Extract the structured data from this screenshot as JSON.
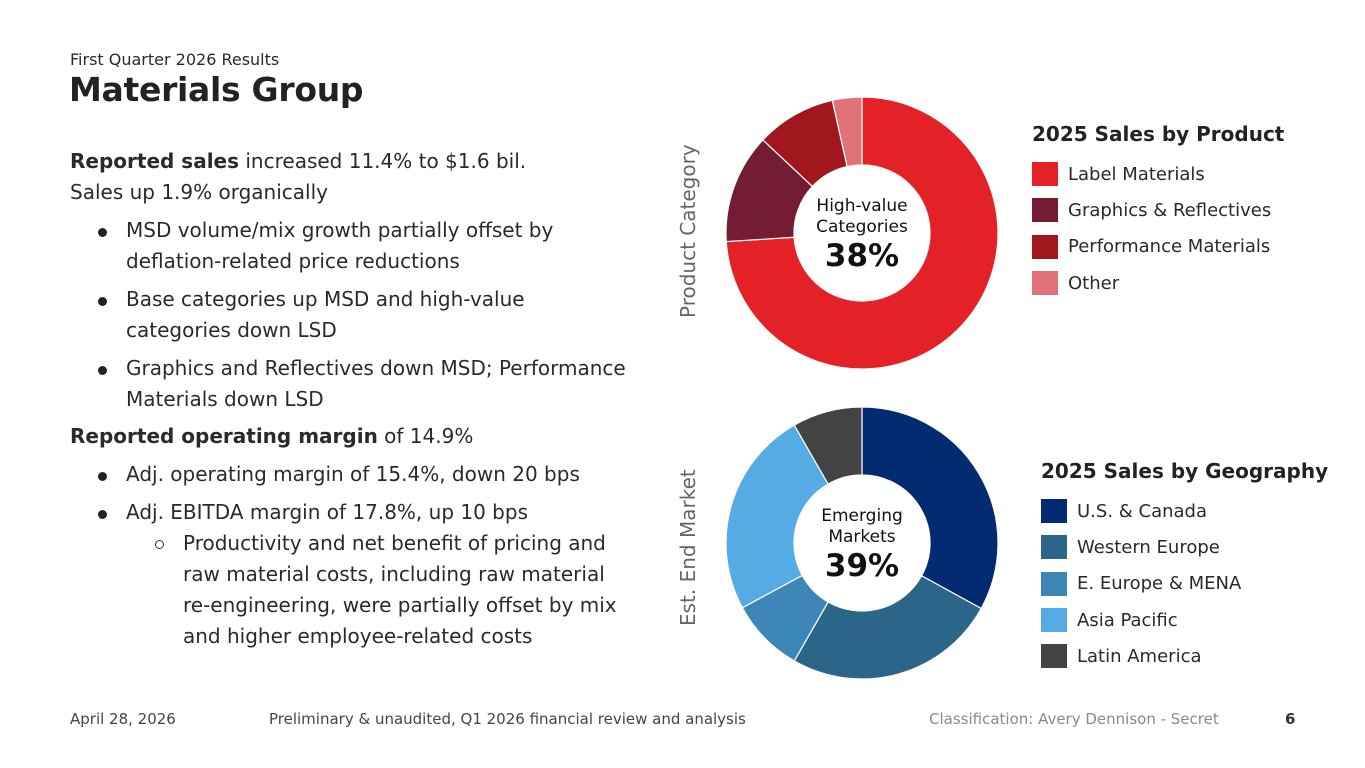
{
  "header": {
    "subtitle": "First Quarter 2026 Results",
    "title": "Materials Group"
  },
  "body": {
    "sales": {
      "lead_bold": "Reported sales",
      "lead_rest": " increased 11.4% to $1.6 bil.",
      "line2": "Sales up 1.9% organically",
      "bullets": [
        "MSD volume/mix growth partially offset by deflation-related price reductions",
        "Base categories up MSD and high-value categories down LSD",
        "Graphics and Reflectives down MSD; Performance Materials down LSD"
      ]
    },
    "margin": {
      "lead_bold": "Reported operating margin",
      "lead_rest": " of 14.9%",
      "bullets": [
        "Adj. operating margin of 15.4%, down 20 bps",
        "Adj. EBITDA margin of 17.8%, up 10 bps"
      ],
      "sub_bullets": [
        "Productivity and net benefit of pricing and raw material costs, including raw material re-engineering, were partially offset by mix and higher employee-related costs"
      ]
    }
  },
  "chart_data": [
    {
      "type": "pie",
      "variant": "donut",
      "title": "2025 Sales by Product",
      "axis_label": "Product Category",
      "center_label": "High-value Categories",
      "center_value": "38%",
      "legend_position": "right",
      "categories": [
        "Label Materials",
        "Graphics & Reflectives",
        "Performance Materials",
        "Other"
      ],
      "values": [
        74,
        13,
        9.5,
        3.5
      ],
      "colors": [
        "#e32127",
        "#741c34",
        "#a1171d",
        "#e07176"
      ]
    },
    {
      "type": "pie",
      "variant": "donut",
      "title": "2025 Sales by Geography",
      "axis_label": "Est. End Market",
      "center_label": "Emerging Markets",
      "center_value": "39%",
      "legend_position": "right",
      "categories": [
        "U.S. & Canada",
        "Western Europe",
        "E. Europe & MENA",
        "Asia Pacific",
        "Latin America"
      ],
      "values": [
        33,
        25.3,
        8.8,
        24.6,
        8.3
      ],
      "colors": [
        "#022b71",
        "#2b6589",
        "#3d86b8",
        "#55abe3",
        "#434343"
      ]
    }
  ],
  "footer": {
    "date": "April 28, 2026",
    "disclaimer": "Preliminary & unaudited, Q1 2026 financial review and analysis",
    "classification": "Classification: Avery Dennison - Secret",
    "page_number": "6"
  }
}
